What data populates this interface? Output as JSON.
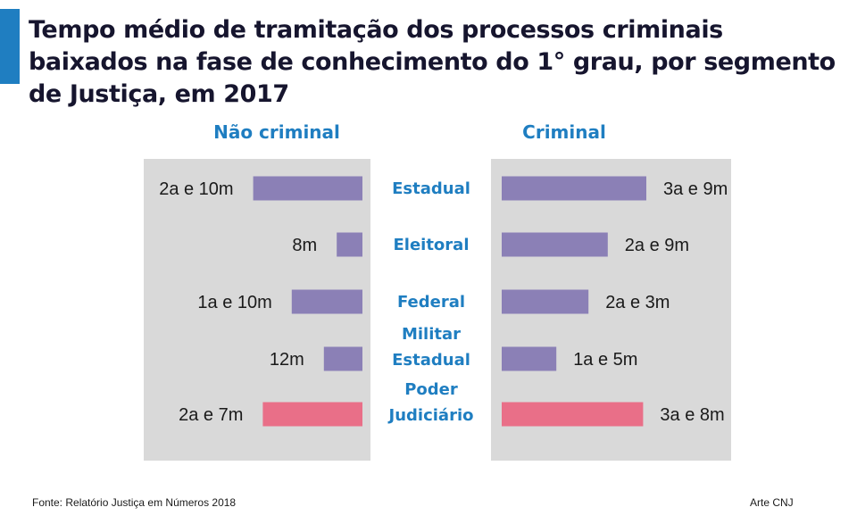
{
  "title": "Tempo médio de tramitação dos processos criminais baixados na fase de conhecimento do 1° grau, por segmento de Justiça, em 2017",
  "colors": {
    "accent": "#1f7ec1",
    "panel": "#d9d9d9",
    "bar": "#8b80b6",
    "highlight": "#e96f88",
    "category_text": "#1f7ec1"
  },
  "chart_data": {
    "type": "bar",
    "orientation": "horizontal",
    "unit": "months",
    "categories": [
      [
        "Estadual"
      ],
      [
        "Eleitoral"
      ],
      [
        "Federal"
      ],
      [
        "Militar",
        "Estadual"
      ],
      [
        "Poder",
        "Judiciário"
      ]
    ],
    "highlight_category_index": 4,
    "series": [
      {
        "name": "Não criminal",
        "values": [
          34,
          8,
          22,
          12,
          31
        ],
        "labels": [
          "2a e 10m",
          "8m",
          "1a e 10m",
          "12m",
          "2a e 7m"
        ]
      },
      {
        "name": "Criminal",
        "values": [
          45,
          33,
          27,
          17,
          44
        ],
        "labels": [
          "3a e 9m",
          "2a e 9m",
          "2a e 3m",
          "1a e 5m",
          "3a e 8m"
        ]
      }
    ]
  },
  "footer": {
    "source": "Fonte: Relatório Justiça em Números 2018",
    "credit": "Arte CNJ"
  }
}
